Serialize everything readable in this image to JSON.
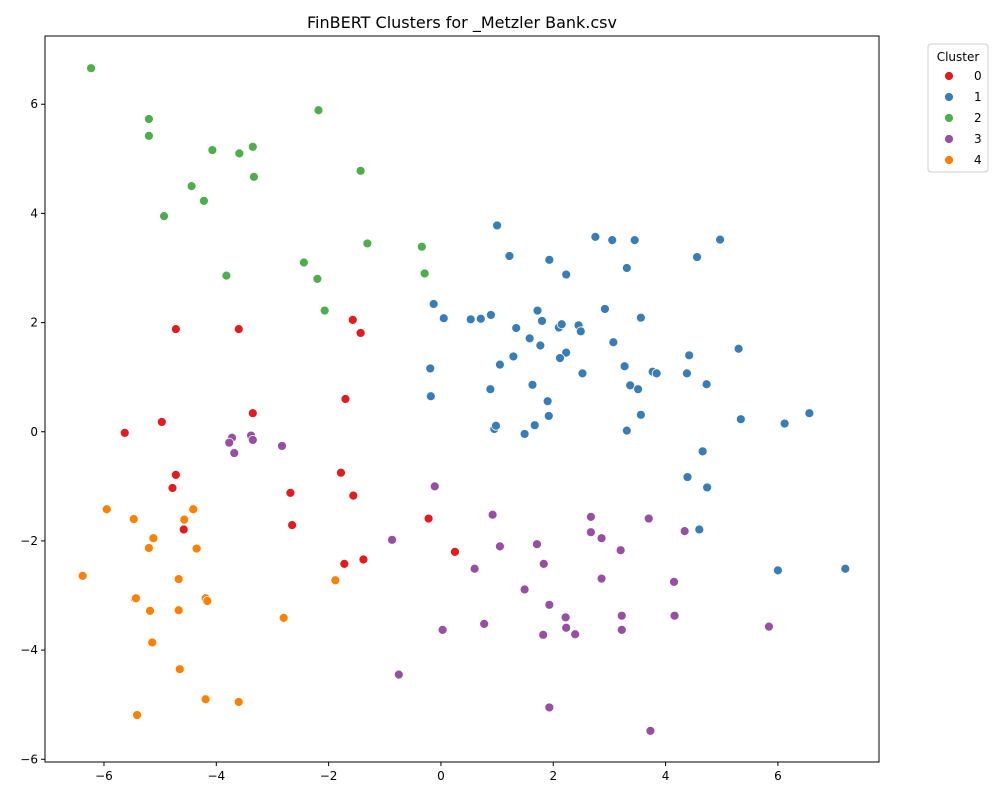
{
  "chart_data": {
    "type": "scatter",
    "title": "FinBERT Clusters for _Metzler Bank.csv",
    "xlabel": "",
    "ylabel": "",
    "xlim": [
      -7.05,
      7.8
    ],
    "ylim": [
      -6.05,
      7.25
    ],
    "xticks": [
      -6,
      -4,
      -2,
      0,
      2,
      4,
      6
    ],
    "yticks": [
      -6,
      -4,
      -2,
      0,
      2,
      4,
      6
    ],
    "grid": false,
    "legend": {
      "title": "Cluster",
      "placement": "outside-top-right",
      "entries": [
        "0",
        "1",
        "2",
        "3",
        "4"
      ]
    },
    "colors": [
      "#e41a1c",
      "#377eb8",
      "#4daf4a",
      "#984ea3",
      "#ff7f00"
    ],
    "series": [
      {
        "name": "0",
        "points": [
          [
            -4.72,
            1.88
          ],
          [
            -3.6,
            1.88
          ],
          [
            -1.57,
            2.05
          ],
          [
            -1.43,
            1.81
          ],
          [
            -4.97,
            0.18
          ],
          [
            -5.63,
            -0.02
          ],
          [
            -3.35,
            0.34
          ],
          [
            -1.7,
            0.6
          ],
          [
            -4.72,
            -0.79
          ],
          [
            -4.78,
            -1.03
          ],
          [
            -2.68,
            -1.12
          ],
          [
            -1.78,
            -0.75
          ],
          [
            -1.56,
            -1.17
          ],
          [
            -4.58,
            -1.79
          ],
          [
            -2.65,
            -1.71
          ],
          [
            -0.22,
            -1.59
          ],
          [
            0.25,
            -2.2
          ],
          [
            -1.72,
            -2.42
          ],
          [
            -1.38,
            -2.34
          ]
        ]
      },
      {
        "name": "1",
        "points": [
          [
            1.0,
            3.78
          ],
          [
            2.75,
            3.57
          ],
          [
            3.05,
            3.51
          ],
          [
            3.45,
            3.51
          ],
          [
            4.97,
            3.52
          ],
          [
            1.22,
            3.22
          ],
          [
            1.93,
            3.15
          ],
          [
            4.56,
            3.2
          ],
          [
            2.23,
            2.88
          ],
          [
            3.31,
            3.0
          ],
          [
            -0.13,
            2.34
          ],
          [
            0.05,
            2.08
          ],
          [
            0.53,
            2.06
          ],
          [
            0.71,
            2.07
          ],
          [
            0.89,
            2.14
          ],
          [
            1.72,
            2.22
          ],
          [
            1.8,
            2.03
          ],
          [
            2.1,
            1.91
          ],
          [
            2.15,
            1.97
          ],
          [
            2.45,
            1.95
          ],
          [
            2.49,
            1.84
          ],
          [
            2.92,
            2.25
          ],
          [
            3.56,
            2.09
          ],
          [
            1.34,
            1.9
          ],
          [
            1.58,
            1.71
          ],
          [
            1.29,
            1.38
          ],
          [
            1.77,
            1.58
          ],
          [
            2.23,
            1.45
          ],
          [
            2.12,
            1.35
          ],
          [
            3.07,
            1.64
          ],
          [
            5.3,
            1.52
          ],
          [
            -0.19,
            1.16
          ],
          [
            1.05,
            1.23
          ],
          [
            2.52,
            1.07
          ],
          [
            3.27,
            1.2
          ],
          [
            3.77,
            1.1
          ],
          [
            3.84,
            1.07
          ],
          [
            4.38,
            1.07
          ],
          [
            4.42,
            1.4
          ],
          [
            1.63,
            0.86
          ],
          [
            0.88,
            0.78
          ],
          [
            3.37,
            0.85
          ],
          [
            3.51,
            0.78
          ],
          [
            4.73,
            0.87
          ],
          [
            -0.18,
            0.65
          ],
          [
            1.9,
            0.56
          ],
          [
            1.92,
            0.29
          ],
          [
            3.56,
            0.31
          ],
          [
            5.34,
            0.23
          ],
          [
            6.56,
            0.34
          ],
          [
            6.12,
            0.15
          ],
          [
            0.95,
            0.05
          ],
          [
            0.98,
            0.11
          ],
          [
            1.49,
            -0.04
          ],
          [
            1.67,
            0.12
          ],
          [
            3.31,
            0.02
          ],
          [
            4.66,
            -0.36
          ],
          [
            4.39,
            -0.83
          ],
          [
            4.74,
            -1.02
          ],
          [
            4.6,
            -1.79
          ],
          [
            6.0,
            -2.54
          ],
          [
            7.2,
            -2.51
          ]
        ]
      },
      {
        "name": "2",
        "points": [
          [
            -6.23,
            6.66
          ],
          [
            -2.18,
            5.89
          ],
          [
            -5.2,
            5.73
          ],
          [
            -5.2,
            5.42
          ],
          [
            -3.35,
            5.22
          ],
          [
            -4.07,
            5.16
          ],
          [
            -3.59,
            5.1
          ],
          [
            -1.43,
            4.78
          ],
          [
            -3.33,
            4.67
          ],
          [
            -4.44,
            4.5
          ],
          [
            -4.22,
            4.23
          ],
          [
            -4.93,
            3.95
          ],
          [
            -1.31,
            3.45
          ],
          [
            -0.34,
            3.39
          ],
          [
            -2.44,
            3.1
          ],
          [
            -0.29,
            2.9
          ],
          [
            -3.82,
            2.86
          ],
          [
            -2.2,
            2.8
          ],
          [
            -2.07,
            2.22
          ]
        ]
      },
      {
        "name": "3",
        "points": [
          [
            -3.72,
            -0.11
          ],
          [
            -3.38,
            -0.07
          ],
          [
            -3.35,
            -0.15
          ],
          [
            -3.77,
            -0.2
          ],
          [
            -2.83,
            -0.26
          ],
          [
            -3.68,
            -0.39
          ],
          [
            -0.11,
            -1.0
          ],
          [
            0.92,
            -1.52
          ],
          [
            2.67,
            -1.56
          ],
          [
            3.7,
            -1.59
          ],
          [
            2.67,
            -1.84
          ],
          [
            2.86,
            -1.95
          ],
          [
            -0.87,
            -1.98
          ],
          [
            4.34,
            -1.82
          ],
          [
            1.05,
            -2.1
          ],
          [
            1.71,
            -2.06
          ],
          [
            3.2,
            -2.17
          ],
          [
            1.83,
            -2.42
          ],
          [
            0.6,
            -2.51
          ],
          [
            2.86,
            -2.69
          ],
          [
            4.15,
            -2.75
          ],
          [
            1.49,
            -2.89
          ],
          [
            1.93,
            -3.17
          ],
          [
            2.22,
            -3.4
          ],
          [
            3.22,
            -3.37
          ],
          [
            4.16,
            -3.37
          ],
          [
            0.77,
            -3.52
          ],
          [
            2.23,
            -3.59
          ],
          [
            3.22,
            -3.63
          ],
          [
            5.84,
            -3.57
          ],
          [
            0.03,
            -3.63
          ],
          [
            1.82,
            -3.72
          ],
          [
            2.39,
            -3.71
          ],
          [
            -0.75,
            -4.45
          ],
          [
            1.93,
            -5.05
          ],
          [
            3.73,
            -5.48
          ]
        ]
      },
      {
        "name": "4",
        "points": [
          [
            -5.95,
            -1.42
          ],
          [
            -5.47,
            -1.6
          ],
          [
            -4.41,
            -1.42
          ],
          [
            -4.57,
            -1.61
          ],
          [
            -5.12,
            -1.95
          ],
          [
            -5.2,
            -2.13
          ],
          [
            -4.35,
            -2.14
          ],
          [
            -6.38,
            -2.64
          ],
          [
            -4.67,
            -2.7
          ],
          [
            -1.88,
            -2.72
          ],
          [
            -5.45,
            -3.06
          ],
          [
            -5.43,
            -3.05
          ],
          [
            -4.19,
            -3.05
          ],
          [
            -4.16,
            -3.1
          ],
          [
            -5.18,
            -3.28
          ],
          [
            -4.67,
            -3.27
          ],
          [
            -2.8,
            -3.41
          ],
          [
            -5.14,
            -3.86
          ],
          [
            -4.65,
            -4.35
          ],
          [
            -4.19,
            -4.9
          ],
          [
            -3.6,
            -4.95
          ],
          [
            -5.41,
            -5.19
          ]
        ]
      }
    ]
  }
}
